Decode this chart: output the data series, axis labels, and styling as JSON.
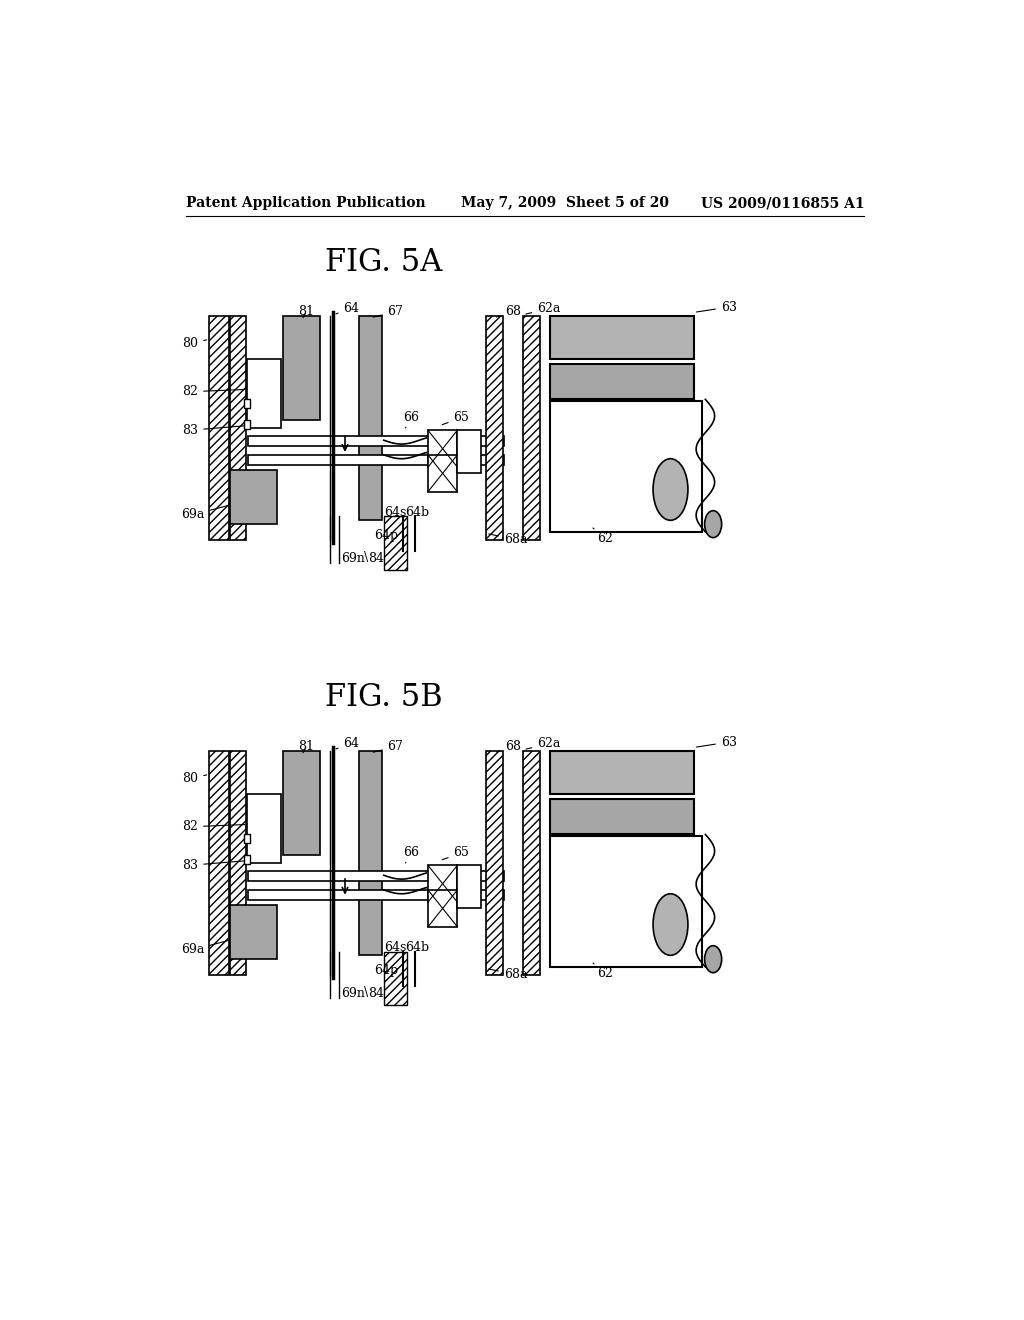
{
  "bg_color": "#ffffff",
  "header_left": "Patent Application Publication",
  "header_mid": "May 7, 2009  Sheet 5 of 20",
  "header_right": "US 2009/0116855 A1",
  "fig5a_title": "FIG. 5A",
  "fig5b_title": "FIG. 5B",
  "header_font_size": 10,
  "title_font_size": 22
}
